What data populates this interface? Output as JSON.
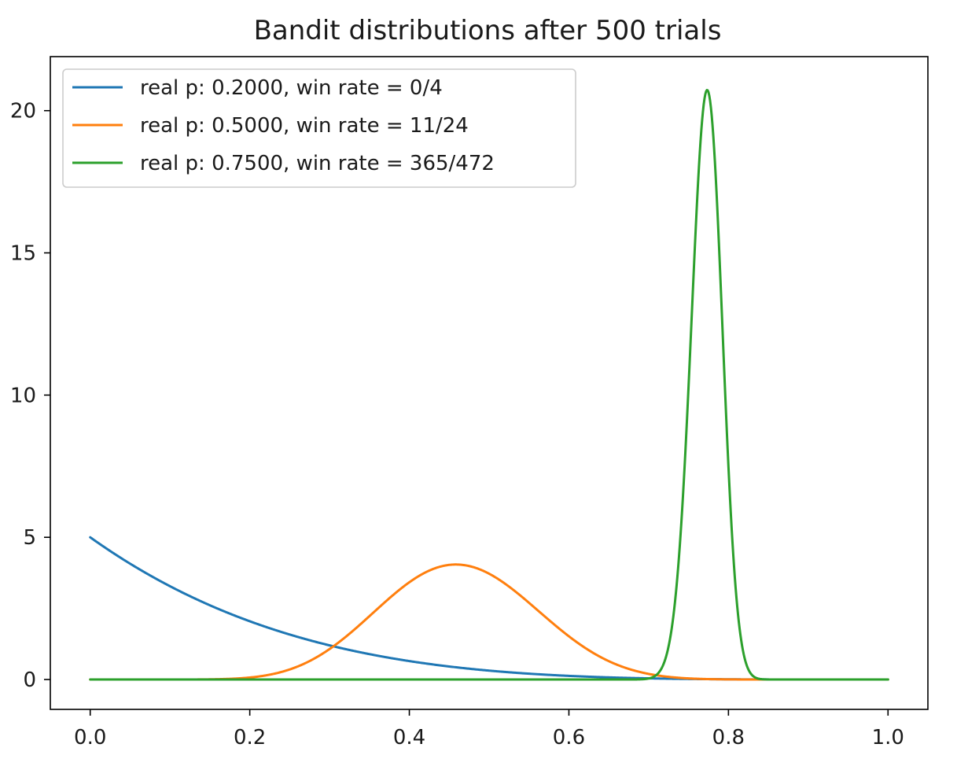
{
  "chart_data": {
    "type": "line",
    "title": "Bandit distributions after 500 trials",
    "xlabel": "",
    "ylabel": "",
    "xlim": [
      -0.05,
      1.05
    ],
    "ylim": [
      -1.05,
      21.9
    ],
    "x_ticks": [
      {
        "value": 0.0,
        "label": "0.0"
      },
      {
        "value": 0.2,
        "label": "0.2"
      },
      {
        "value": 0.4,
        "label": "0.4"
      },
      {
        "value": 0.6,
        "label": "0.6"
      },
      {
        "value": 0.8,
        "label": "0.8"
      },
      {
        "value": 1.0,
        "label": "1.0"
      }
    ],
    "y_ticks": [
      {
        "value": 0,
        "label": "0"
      },
      {
        "value": 5,
        "label": "5"
      },
      {
        "value": 10,
        "label": "10"
      },
      {
        "value": 15,
        "label": "15"
      },
      {
        "value": 20,
        "label": "20"
      }
    ],
    "grid": false,
    "legend_position": "top-left",
    "series": [
      {
        "name": "real p: 0.2000, win rate = 0/4",
        "color": "#1f77b4",
        "beta_a": 1,
        "beta_b": 5
      },
      {
        "name": "real p: 0.5000, win rate = 11/24",
        "color": "#ff7f0e",
        "beta_a": 12,
        "beta_b": 14
      },
      {
        "name": "real p: 0.7500, win rate = 365/472",
        "color": "#2ca02c",
        "beta_a": 366,
        "beta_b": 108
      }
    ]
  }
}
